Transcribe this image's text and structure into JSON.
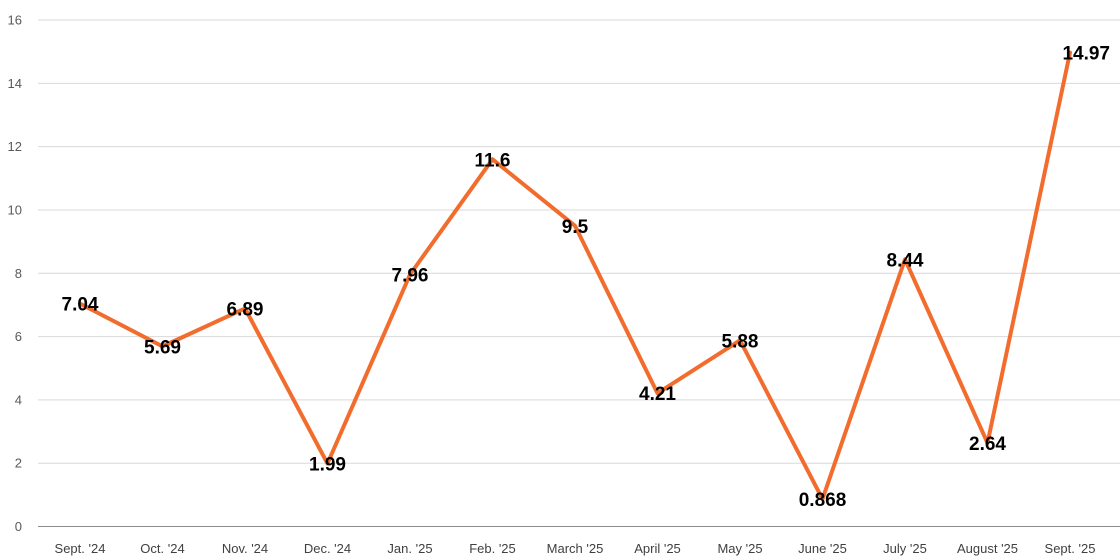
{
  "chart_data": {
    "type": "line",
    "title": "",
    "xlabel": "",
    "ylabel": "",
    "categories": [
      "Sept. '24",
      "Oct. '24",
      "Nov. '24",
      "Dec. '24",
      "Jan. '25",
      "Feb. '25",
      "March '25",
      "April '25",
      "May '25",
      "June '25",
      "July '25",
      "August '25",
      "Sept. '25"
    ],
    "series": [
      {
        "values": [
          7.04,
          5.69,
          6.89,
          1.99,
          7.96,
          11.6,
          9.5,
          4.21,
          5.88,
          0.868,
          8.44,
          2.64,
          14.97
        ],
        "color": "#f26d2d"
      }
    ],
    "data_labels": [
      "7.04",
      "5.69",
      "6.89",
      "1.99",
      "7.96",
      "11.6",
      "9.5",
      "4.21",
      "5.88",
      "0.868",
      "8.44",
      "2.64",
      "14.97"
    ],
    "ylim": [
      0,
      16
    ],
    "yticks": [
      "0",
      "2",
      "4",
      "6",
      "8",
      "10",
      "12",
      "14",
      "16"
    ],
    "grid": true,
    "legend": "none"
  }
}
